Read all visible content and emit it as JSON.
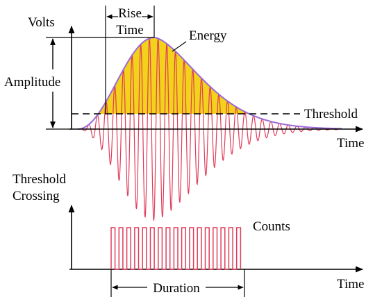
{
  "labels": {
    "volts": "Volts",
    "rise": "Rise",
    "time_word": "Time",
    "energy": "Energy",
    "amplitude": "Amplitude",
    "threshold": "Threshold",
    "time_axis_top": "Time",
    "threshold_line1": "Threshold",
    "threshold_line2": "Crossing",
    "counts": "Counts",
    "duration": "Duration",
    "time_axis_bottom": "Time"
  },
  "colors": {
    "fill": "#f2d21b",
    "envelope": "#9a6ad8",
    "waveform": "#e03c5a",
    "axis": "#000000"
  },
  "pulses": {
    "count": 17
  }
}
